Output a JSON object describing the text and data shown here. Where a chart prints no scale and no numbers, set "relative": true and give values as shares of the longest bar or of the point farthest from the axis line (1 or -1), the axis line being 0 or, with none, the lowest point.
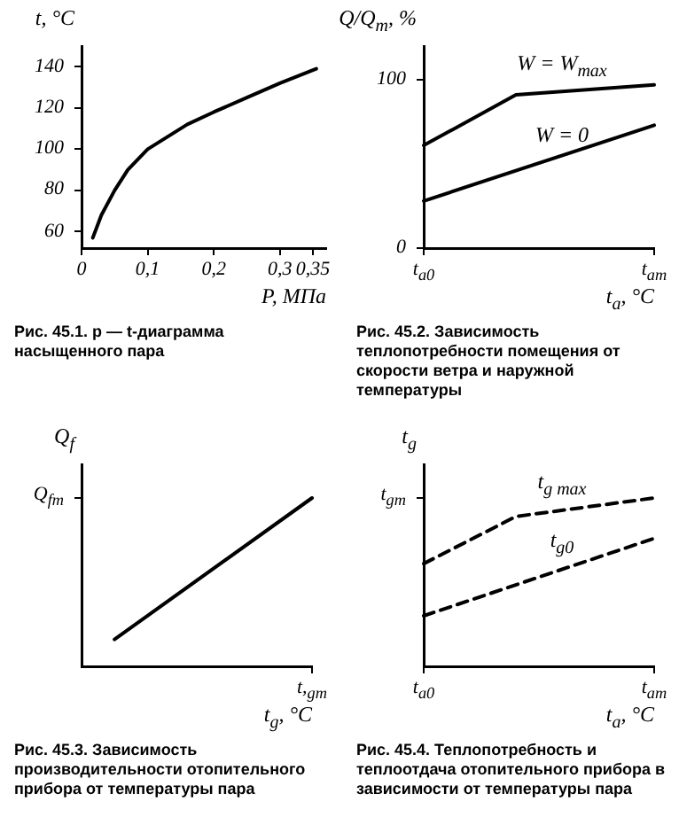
{
  "chart_data": [
    {
      "type": "line",
      "xlabel": "P, МПа",
      "ylabel": "t, °C",
      "annotations": [
        "Рис. 45.1. p — t-диаграмма насыщенного пара"
      ],
      "x": [
        0.017,
        0.03,
        0.05,
        0.07,
        0.1,
        0.13,
        0.16,
        0.2,
        0.25,
        0.3,
        0.355
      ],
      "values": [
        57,
        68,
        80,
        90,
        100,
        106,
        112,
        118,
        125,
        132,
        139
      ],
      "color": "#000000",
      "xlim": [
        0,
        0.37
      ],
      "xticks": [
        0,
        {
          "value": 0.1,
          "label": "0,1"
        },
        {
          "value": 0.2,
          "label": "0,2"
        },
        {
          "value": 0.3,
          "label": "0,3"
        },
        {
          "value": 0.35,
          "label": "0,35"
        }
      ],
      "ylim": [
        52,
        150
      ],
      "yticks": [
        60,
        80,
        100,
        120,
        140
      ]
    },
    {
      "type": "line",
      "xlabel": "t$_{a}$, °C",
      "ylabel": "Q/Q$_{m}$, %",
      "annotations": [
        "Рис. 45.2. Зависимость теплопотребности помещения от скорости ветра и наружной температуры"
      ],
      "categories": [
        "t$_{a0}$",
        null,
        null,
        null,
        null,
        "t$_{am}$"
      ],
      "series": [
        {
          "name": "W = W$_{max}$",
          "color": "#000000",
          "values": [
            61,
            null,
            91,
            null,
            null,
            97
          ]
        },
        {
          "name": "W = 0",
          "color": "#000000",
          "values": [
            28,
            null,
            null,
            null,
            null,
            73
          ]
        }
      ],
      "ylim": [
        0,
        120
      ],
      "yticks": [
        0,
        100
      ]
    },
    {
      "type": "line",
      "xlabel": "t$_{g}$, °C",
      "ylabel": "Q$_{f}$",
      "annotations": [
        "Рис. 45.3. Зависимость производительности отопительного прибора от температуры пара",
        "Q$_{fm}$",
        "t,$_{gm}$"
      ],
      "relative": true,
      "categories": [
        null,
        null,
        null,
        null,
        null,
        null,
        null,
        null
      ],
      "values": [
        null,
        0.16,
        null,
        null,
        null,
        null,
        null,
        1
      ],
      "color": "#000000"
    },
    {
      "type": "line",
      "xlabel": "t$_{a}$, °C",
      "ylabel": "t$_{g}$",
      "annotations": [
        "Рис. 45.4. Теплопотребность и теплоотдача отопительного прибора в зависимости от температуры пара",
        "t$_{gm}$"
      ],
      "relative": true,
      "categories": [
        "t$_{a0}$",
        null,
        null,
        null,
        null,
        "t$_{am}$"
      ],
      "series": [
        {
          "name": "t$_{g max}$",
          "color": "#000000",
          "line_style": "dashed",
          "values": [
            0.61,
            null,
            0.89,
            null,
            null,
            1
          ]
        },
        {
          "name": "t$_{g0}$",
          "color": "#000000",
          "line_style": "dashed",
          "values": [
            0.3,
            null,
            null,
            null,
            null,
            0.76
          ]
        }
      ]
    }
  ]
}
